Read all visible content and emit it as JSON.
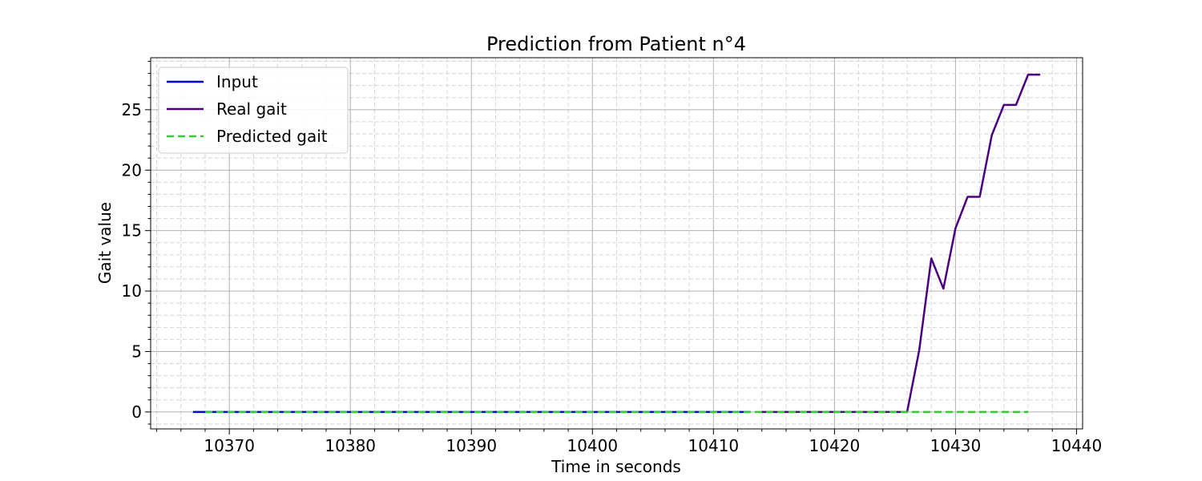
{
  "chart_data": {
    "type": "line",
    "title": "Prediction from Patient n°4",
    "xlabel": "Time in seconds",
    "ylabel": "Gait value",
    "xlim": [
      10363.5,
      10440.5
    ],
    "ylim": [
      -1.4,
      29.3
    ],
    "xticks": [
      10370,
      10380,
      10390,
      10400,
      10410,
      10420,
      10430,
      10440
    ],
    "yticks": [
      0,
      5,
      10,
      15,
      20,
      25
    ],
    "xminor_step": 2,
    "yminor_step": 1,
    "grid": true,
    "legend_position": "upper-left",
    "series": [
      {
        "name": "Input",
        "color": "#0000dd",
        "style": "solid",
        "x": [
          10367,
          10413
        ],
        "y": [
          0,
          0
        ]
      },
      {
        "name": "Real gait",
        "color": "#4b0082",
        "style": "solid",
        "x": [
          10414,
          10415,
          10416,
          10417,
          10418,
          10419,
          10420,
          10421,
          10422,
          10423,
          10424,
          10425,
          10426,
          10427,
          10428,
          10429,
          10430,
          10431,
          10432,
          10433,
          10434,
          10435,
          10436,
          10437
        ],
        "y": [
          0,
          0,
          0,
          0,
          0,
          0,
          0,
          0,
          0,
          0,
          0,
          0,
          0,
          5.1,
          12.7,
          10.2,
          15.2,
          17.8,
          17.8,
          22.9,
          25.4,
          25.4,
          27.9,
          27.9
        ]
      },
      {
        "name": "Predicted gait",
        "color": "#33cc33",
        "style": "dashed",
        "x": [
          10368,
          10436
        ],
        "y": [
          0,
          0
        ]
      }
    ]
  }
}
